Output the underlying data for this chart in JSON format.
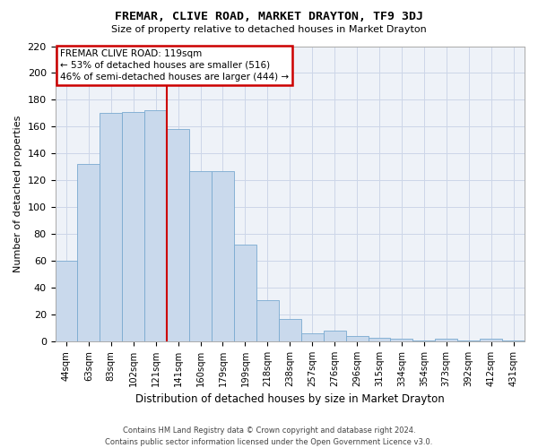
{
  "title": "FREMAR, CLIVE ROAD, MARKET DRAYTON, TF9 3DJ",
  "subtitle": "Size of property relative to detached houses in Market Drayton",
  "xlabel": "Distribution of detached houses by size in Market Drayton",
  "ylabel": "Number of detached properties",
  "categories": [
    "44sqm",
    "63sqm",
    "83sqm",
    "102sqm",
    "121sqm",
    "141sqm",
    "160sqm",
    "179sqm",
    "199sqm",
    "218sqm",
    "238sqm",
    "257sqm",
    "276sqm",
    "296sqm",
    "315sqm",
    "334sqm",
    "354sqm",
    "373sqm",
    "392sqm",
    "412sqm",
    "431sqm"
  ],
  "values": [
    60,
    132,
    170,
    171,
    172,
    158,
    127,
    127,
    72,
    31,
    17,
    6,
    8,
    4,
    3,
    2,
    1,
    2,
    1,
    2,
    1
  ],
  "bar_color": "#c9d9ec",
  "bar_edge_color": "#7aaad0",
  "highlight_index": 4,
  "highlight_color": "#cc0000",
  "ylim": [
    0,
    220
  ],
  "yticks": [
    0,
    20,
    40,
    60,
    80,
    100,
    120,
    140,
    160,
    180,
    200,
    220
  ],
  "annotation_text": "FREMAR CLIVE ROAD: 119sqm\n← 53% of detached houses are smaller (516)\n46% of semi-detached houses are larger (444) →",
  "annotation_box_color": "#ffffff",
  "annotation_box_edge": "#cc0000",
  "grid_color": "#ccd6e8",
  "bg_color": "#eef2f8",
  "footer1": "Contains HM Land Registry data © Crown copyright and database right 2024.",
  "footer2": "Contains public sector information licensed under the Open Government Licence v3.0."
}
